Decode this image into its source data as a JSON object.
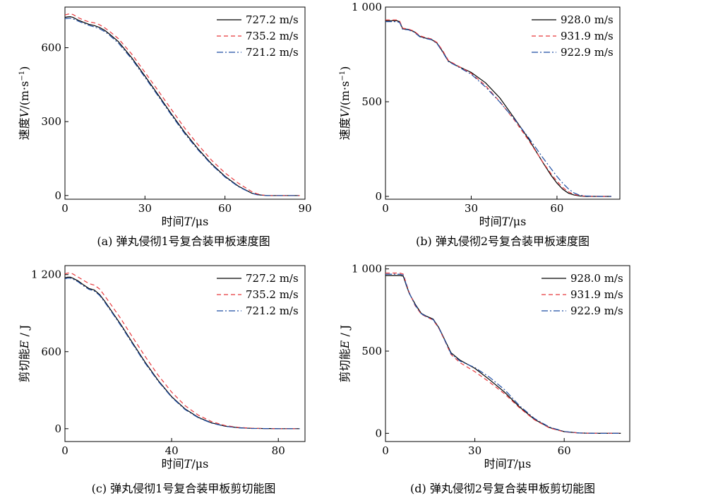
{
  "colors": {
    "series1": "#000000",
    "series2": "#e8383b",
    "series3": "#1f4ea3"
  },
  "chart_data": [
    {
      "type": "line",
      "caption": "(a) 弹丸侵彻1号复合装甲板速度图",
      "xlabel_main": "时间",
      "xlabel_var": "T",
      "xlabel_unit": "/μs",
      "ylabel_main": "速度",
      "ylabel_var": "V",
      "ylabel_unit": "/(m·s",
      "ylabel_sup": "−1",
      "ylabel_close": ")",
      "xlim": [
        0,
        90
      ],
      "ylim": [
        -15,
        765
      ],
      "xticks": [
        0,
        30,
        60,
        90
      ],
      "xtick_labels": [
        "0",
        "30",
        "60",
        "90"
      ],
      "yticks": [
        0,
        300,
        600
      ],
      "ytick_labels": [
        "0",
        "300",
        "600"
      ],
      "legend_position": "top-right",
      "series": [
        {
          "name": "727.2 m/s",
          "style": "solid",
          "x": [
            0,
            1,
            2,
            3,
            5,
            7,
            9,
            11,
            13,
            15,
            17,
            20,
            25,
            30,
            35,
            40,
            45,
            50,
            55,
            60,
            65,
            70,
            72,
            74,
            76,
            80,
            85,
            88
          ],
          "y": [
            723,
            725,
            726,
            723,
            712,
            703,
            695,
            690,
            682,
            670,
            653,
            625,
            560,
            485,
            408,
            330,
            255,
            188,
            128,
            78,
            38,
            10,
            4,
            1,
            0,
            0,
            0,
            0
          ]
        },
        {
          "name": "735.2 m/s",
          "style": "dashed",
          "x": [
            0,
            1,
            2,
            3,
            5,
            7,
            9,
            11,
            13,
            15,
            17,
            20,
            25,
            30,
            35,
            40,
            45,
            50,
            55,
            60,
            65,
            70,
            72,
            74,
            76,
            80,
            85,
            88
          ],
          "y": [
            733,
            736,
            738,
            735,
            722,
            712,
            705,
            701,
            693,
            680,
            664,
            637,
            575,
            500,
            425,
            348,
            272,
            205,
            143,
            92,
            50,
            16,
            7,
            2,
            0,
            0,
            0,
            0
          ]
        },
        {
          "name": "721.2 m/s",
          "style": "dashdot",
          "x": [
            0,
            1,
            2,
            3,
            5,
            7,
            9,
            11,
            13,
            15,
            17,
            20,
            25,
            30,
            35,
            40,
            45,
            50,
            55,
            60,
            65,
            70,
            72,
            74,
            76,
            80,
            85,
            88
          ],
          "y": [
            718,
            719,
            720,
            717,
            708,
            699,
            691,
            684,
            677,
            665,
            648,
            619,
            555,
            480,
            403,
            325,
            250,
            184,
            125,
            75,
            36,
            9,
            3,
            1,
            0,
            0,
            0,
            0
          ]
        }
      ]
    },
    {
      "type": "line",
      "caption": "(b) 弹丸侵彻2号复合装甲板速度图",
      "xlabel_main": "时间",
      "xlabel_var": "T",
      "xlabel_unit": "/μs",
      "ylabel_main": "速度",
      "ylabel_var": "V",
      "ylabel_unit": "/(m·s",
      "ylabel_sup": "−1",
      "ylabel_close": ")",
      "xlim": [
        0,
        82
      ],
      "ylim": [
        -15,
        1000
      ],
      "xticks": [
        0,
        30,
        60
      ],
      "xtick_labels": [
        "0",
        "30",
        "60"
      ],
      "yticks": [
        0,
        500,
        1000
      ],
      "ytick_labels": [
        "0",
        "500",
        "1 000"
      ],
      "legend_position": "top-right",
      "series": [
        {
          "name": "928.0 m/s",
          "style": "solid",
          "x": [
            0,
            4,
            5,
            6,
            8,
            10,
            12,
            14,
            16,
            18,
            20,
            22,
            25,
            30,
            35,
            40,
            45,
            50,
            55,
            58,
            60,
            62,
            64,
            66,
            68,
            70,
            75,
            79
          ],
          "y": [
            928,
            928,
            922,
            885,
            882,
            870,
            845,
            836,
            830,
            810,
            765,
            715,
            690,
            655,
            600,
            520,
            415,
            305,
            180,
            110,
            70,
            38,
            17,
            7,
            2,
            0,
            0,
            0
          ]
        },
        {
          "name": "931.9 m/s",
          "style": "dashed",
          "x": [
            0,
            4,
            5,
            6,
            8,
            10,
            12,
            14,
            16,
            18,
            20,
            22,
            25,
            30,
            35,
            40,
            45,
            50,
            55,
            58,
            60,
            62,
            64,
            66,
            68,
            70,
            75,
            79
          ],
          "y": [
            932,
            932,
            925,
            888,
            884,
            873,
            848,
            839,
            832,
            813,
            770,
            718,
            692,
            650,
            585,
            500,
            405,
            298,
            182,
            118,
            80,
            47,
            24,
            10,
            4,
            1,
            0,
            0
          ]
        },
        {
          "name": "922.9 m/s",
          "style": "dashdot",
          "x": [
            0,
            4,
            5,
            6,
            8,
            10,
            12,
            14,
            16,
            18,
            20,
            22,
            25,
            30,
            35,
            40,
            45,
            50,
            55,
            58,
            60,
            62,
            64,
            66,
            68,
            70,
            75,
            79
          ],
          "y": [
            923,
            923,
            918,
            882,
            880,
            868,
            843,
            834,
            828,
            808,
            762,
            712,
            688,
            645,
            578,
            498,
            410,
            312,
            205,
            145,
            105,
            70,
            40,
            18,
            6,
            2,
            0,
            0
          ]
        }
      ]
    },
    {
      "type": "line",
      "caption": "(c) 弹丸侵彻1号复合装甲板剪切能图",
      "xlabel_main": "时间",
      "xlabel_var": "T",
      "xlabel_unit": "/μs",
      "ylabel_main": "剪切能",
      "ylabel_var": "E",
      "ylabel_unit": " / J",
      "xlim": [
        0,
        90
      ],
      "ylim": [
        -100,
        1270
      ],
      "xticks": [
        0,
        40,
        80
      ],
      "xtick_labels": [
        "0",
        "40",
        "80"
      ],
      "yticks": [
        0,
        600,
        1200
      ],
      "ytick_labels": [
        "0",
        "600",
        "1 200"
      ],
      "legend_position": "top-right",
      "series": [
        {
          "name": "727.2 m/s",
          "style": "solid",
          "x": [
            0,
            1,
            2,
            3,
            5,
            7,
            9,
            11,
            13,
            15,
            18,
            21,
            25,
            30,
            35,
            40,
            45,
            50,
            55,
            60,
            65,
            70,
            75,
            80,
            88
          ],
          "y": [
            1175,
            1180,
            1180,
            1172,
            1150,
            1120,
            1092,
            1080,
            1045,
            990,
            900,
            810,
            680,
            520,
            375,
            250,
            155,
            88,
            45,
            20,
            8,
            3,
            1,
            0,
            0
          ]
        },
        {
          "name": "735.2 m/s",
          "style": "dashed",
          "x": [
            0,
            1,
            2,
            3,
            5,
            7,
            9,
            11,
            13,
            15,
            18,
            21,
            25,
            30,
            35,
            40,
            45,
            50,
            55,
            60,
            65,
            70,
            75,
            80,
            88
          ],
          "y": [
            1205,
            1212,
            1212,
            1205,
            1180,
            1155,
            1130,
            1118,
            1088,
            1032,
            945,
            855,
            725,
            565,
            415,
            285,
            180,
            105,
            55,
            25,
            10,
            4,
            1,
            0,
            0
          ]
        },
        {
          "name": "721.2 m/s",
          "style": "dashdot",
          "x": [
            0,
            1,
            2,
            3,
            5,
            7,
            9,
            11,
            13,
            15,
            18,
            21,
            25,
            30,
            35,
            40,
            45,
            50,
            55,
            60,
            65,
            70,
            75,
            80,
            88
          ],
          "y": [
            1168,
            1172,
            1172,
            1165,
            1143,
            1112,
            1085,
            1072,
            1038,
            982,
            893,
            802,
            672,
            512,
            368,
            245,
            150,
            85,
            43,
            19,
            7,
            2,
            1,
            0,
            0
          ]
        }
      ]
    },
    {
      "type": "line",
      "caption": "(d) 弹丸侵彻2号复合装甲板剪切能图",
      "xlabel_main": "时间",
      "xlabel_var": "T",
      "xlabel_unit": "/μs",
      "ylabel_main": "剪切能",
      "ylabel_var": "E",
      "ylabel_unit": " / J",
      "xlim": [
        0,
        82
      ],
      "ylim": [
        -50,
        1020
      ],
      "xticks": [
        0,
        30,
        60
      ],
      "xtick_labels": [
        "0",
        "30",
        "60"
      ],
      "yticks": [
        0,
        500,
        1000
      ],
      "ytick_labels": [
        "0",
        "500",
        "1 000"
      ],
      "legend_position": "top-right",
      "series": [
        {
          "name": "928.0 m/s",
          "style": "solid",
          "x": [
            0,
            4,
            5,
            6,
            7,
            8,
            10,
            12,
            14,
            16,
            18,
            20,
            22,
            25,
            30,
            35,
            40,
            45,
            50,
            55,
            60,
            65,
            70,
            75,
            79
          ],
          "y": [
            960,
            960,
            960,
            955,
            900,
            850,
            785,
            730,
            710,
            695,
            640,
            565,
            490,
            445,
            395,
            325,
            250,
            160,
            85,
            35,
            10,
            2,
            0,
            0,
            0
          ]
        },
        {
          "name": "931.9 m/s",
          "style": "dashed",
          "x": [
            0,
            4,
            5,
            6,
            7,
            8,
            10,
            12,
            14,
            16,
            18,
            20,
            22,
            25,
            30,
            35,
            40,
            45,
            50,
            55,
            60,
            65,
            70,
            75,
            79
          ],
          "y": [
            975,
            975,
            974,
            968,
            910,
            855,
            775,
            725,
            705,
            690,
            635,
            560,
            480,
            430,
            375,
            310,
            240,
            155,
            82,
            33,
            9,
            2,
            0,
            0,
            0
          ]
        },
        {
          "name": "922.9 m/s",
          "style": "dashdot",
          "x": [
            0,
            4,
            5,
            6,
            7,
            8,
            10,
            12,
            14,
            16,
            18,
            20,
            22,
            25,
            30,
            35,
            40,
            45,
            50,
            55,
            60,
            65,
            70,
            75,
            79
          ],
          "y": [
            968,
            968,
            967,
            962,
            905,
            852,
            780,
            728,
            708,
            692,
            638,
            562,
            485,
            440,
            400,
            340,
            265,
            168,
            90,
            38,
            11,
            2,
            0,
            0,
            0
          ]
        }
      ]
    }
  ]
}
